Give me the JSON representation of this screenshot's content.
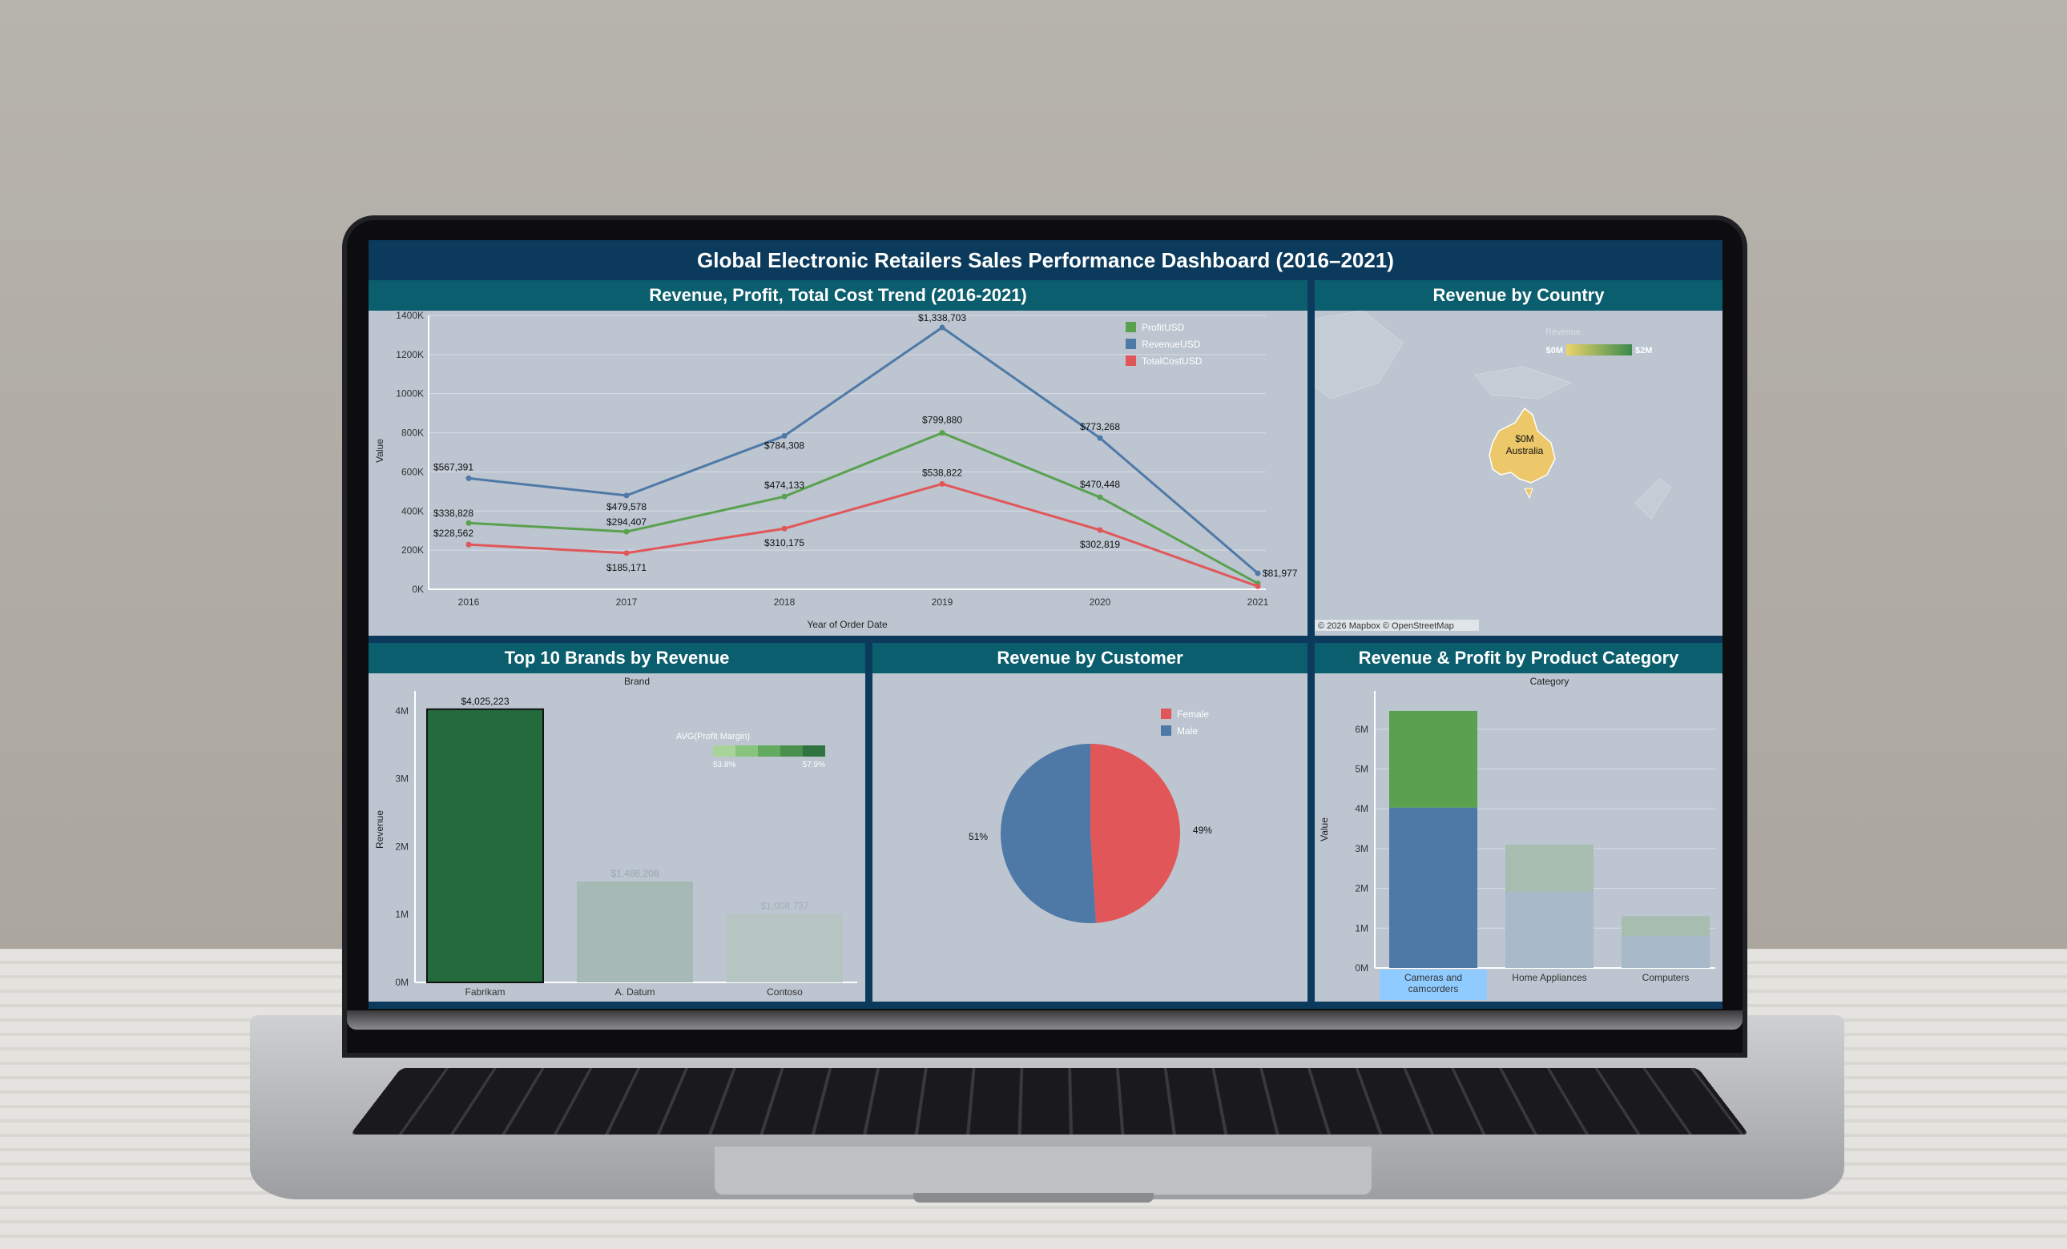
{
  "dashboard": {
    "title": "Global Electronic Retailers Sales Performance Dashboard (2016–2021)"
  },
  "panels": {
    "trend": {
      "title": "Revenue, Profit, Total Cost Trend (2016-2021)"
    },
    "country": {
      "title": "Revenue by Country",
      "attribution": "© 2026 Mapbox © OpenStreetMap"
    },
    "brands": {
      "title": "Top 10 Brands by Revenue"
    },
    "customer": {
      "title": "Revenue by Customer"
    },
    "category": {
      "title": "Revenue & Profit by Product Category"
    }
  },
  "colors": {
    "profit": "#59a14f",
    "revenue": "#4e79a7",
    "cost": "#e15759",
    "panel_bg": "#bcc5d0",
    "header_bg": "#0b5e6e",
    "frame_bg": "#0b3a5c"
  },
  "chart_data": [
    {
      "id": "trend",
      "type": "line",
      "x": [
        "2016",
        "2017",
        "2018",
        "2019",
        "2020",
        "2021"
      ],
      "series": [
        {
          "name": "ProfitUSD",
          "values": [
            338828,
            294407,
            474133,
            799880,
            470448,
            30000
          ]
        },
        {
          "name": "RevenueUSD",
          "values": [
            567391,
            479578,
            784308,
            1338703,
            773268,
            81977
          ]
        },
        {
          "name": "TotalCostUSD",
          "values": [
            228562,
            185171,
            310175,
            538822,
            302819,
            15000
          ]
        }
      ],
      "labels": {
        "ProfitUSD": [
          "$338,828",
          "$294,407",
          "$474,133",
          "$799,880",
          "$470,448",
          ""
        ],
        "RevenueUSD": [
          "$567,391",
          "$479,578",
          "$784,308",
          "$1,338,703",
          "$773,268",
          "$81,977"
        ],
        "TotalCostUSD": [
          "$228,562",
          "$185,171",
          "$310,175",
          "$538,822",
          "$302,819",
          ""
        ]
      },
      "yticks": [
        "0K",
        "200K",
        "400K",
        "600K",
        "800K",
        "1000K",
        "1200K",
        "1400K"
      ],
      "ylim": [
        0,
        1400000
      ],
      "xlabel": "Year of Order Date",
      "ylabel": "Value",
      "legend": "top-right"
    },
    {
      "id": "country",
      "type": "map",
      "region_label": "Australia",
      "region_value": "$0M",
      "legend_title": "Revenue",
      "legend_min": "$0M",
      "legend_max": "$2M"
    },
    {
      "id": "brands",
      "type": "bar",
      "title": "Brand",
      "categories": [
        "Fabrikam",
        "A. Datum",
        "Contoso"
      ],
      "values": [
        4025223,
        1486208,
        1008737
      ],
      "value_labels": [
        "$4,025,223",
        "$1,486,208",
        "$1,008,737"
      ],
      "ylabel": "Revenue",
      "yticks": [
        "0M",
        "1M",
        "2M",
        "3M",
        "4M"
      ],
      "ylim": [
        0,
        4200000
      ],
      "color_legend": {
        "title": "AVG(Profit Margin)",
        "min": "53.8%",
        "max": "57.9%"
      }
    },
    {
      "id": "customer",
      "type": "pie",
      "categories": [
        "Female",
        "Male"
      ],
      "values": [
        49,
        51
      ],
      "value_labels": [
        "49%",
        "51%"
      ],
      "legend": "top-right"
    },
    {
      "id": "category",
      "type": "bar",
      "stacked": true,
      "title": "Category",
      "categories": [
        "Cameras and camcorders",
        "Home Appliances",
        "Computers"
      ],
      "category_lines": [
        [
          "Cameras and",
          "camcorders"
        ],
        [
          "Home Appliances"
        ],
        [
          "Computers"
        ]
      ],
      "series": [
        {
          "name": "Revenue",
          "values": [
            4030000,
            1920000,
            800000
          ]
        },
        {
          "name": "Profit",
          "values": [
            2430000,
            1180000,
            500000
          ]
        }
      ],
      "ylabel": "Value",
      "yticks": [
        "0M",
        "1M",
        "2M",
        "3M",
        "4M",
        "5M",
        "6M"
      ],
      "ylim": [
        0,
        6800000
      ]
    }
  ]
}
